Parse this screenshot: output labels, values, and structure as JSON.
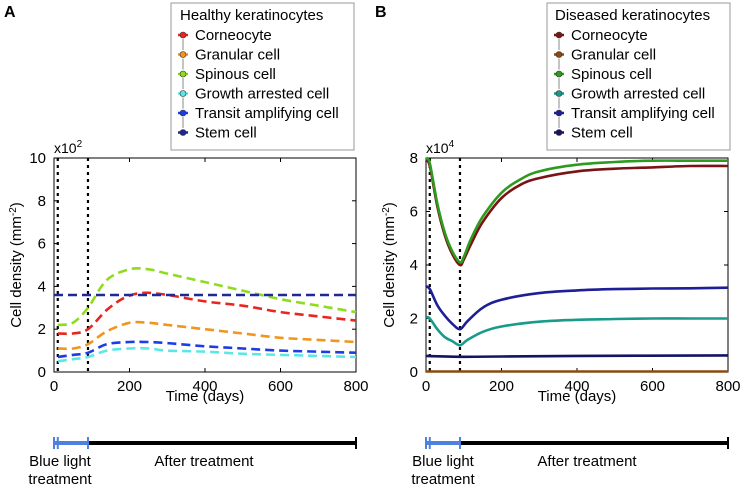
{
  "chart_data": [
    {
      "panel": "A",
      "type": "line",
      "legend_title": "Healthy keratinocytes",
      "exponent_base": "x10",
      "exponent_power": "2",
      "xlabel": "Time (days)",
      "ylabel_main": "Cell density (mm",
      "ylabel_sup": "-2",
      "ylabel_close": ")",
      "xlim": [
        0,
        800
      ],
      "ylim": [
        0,
        10
      ],
      "xticks": [
        0,
        200,
        400,
        600,
        800
      ],
      "yticks": [
        0,
        2,
        4,
        6,
        8,
        10
      ],
      "vlines": [
        10,
        90
      ],
      "line_style": "dashed",
      "series": [
        {
          "name": "Corneocyte",
          "color": "#e8261f",
          "x": [
            10,
            50,
            90,
            140,
            190,
            240,
            300,
            400,
            500,
            600,
            700,
            800
          ],
          "y": [
            1.8,
            1.8,
            2.0,
            2.9,
            3.5,
            3.7,
            3.6,
            3.3,
            3.1,
            2.8,
            2.6,
            2.4
          ]
        },
        {
          "name": "Granular cell",
          "color": "#f0961e",
          "x": [
            10,
            50,
            90,
            140,
            200,
            250,
            300,
            400,
            500,
            600,
            700,
            800
          ],
          "y": [
            1.1,
            1.1,
            1.3,
            1.9,
            2.3,
            2.3,
            2.2,
            2.0,
            1.8,
            1.6,
            1.5,
            1.4
          ]
        },
        {
          "name": "Spinous cell",
          "color": "#8fdc1e",
          "x": [
            10,
            50,
            90,
            140,
            200,
            250,
            300,
            400,
            500,
            600,
            700,
            800
          ],
          "y": [
            2.2,
            2.3,
            3.0,
            4.3,
            4.8,
            4.8,
            4.6,
            4.2,
            3.8,
            3.4,
            3.1,
            2.8
          ]
        },
        {
          "name": "Growth arrested cell",
          "color": "#5ee6e6",
          "x": [
            10,
            50,
            90,
            140,
            200,
            250,
            300,
            400,
            500,
            600,
            700,
            800
          ],
          "y": [
            0.5,
            0.6,
            0.7,
            1.0,
            1.1,
            1.1,
            1.0,
            0.95,
            0.85,
            0.8,
            0.75,
            0.7
          ]
        },
        {
          "name": "Transit amplifying cell",
          "color": "#1e3ce6",
          "x": [
            10,
            50,
            90,
            140,
            200,
            250,
            300,
            400,
            500,
            600,
            700,
            800
          ],
          "y": [
            0.7,
            0.8,
            0.9,
            1.3,
            1.4,
            1.4,
            1.35,
            1.2,
            1.1,
            1.0,
            0.95,
            0.9
          ]
        },
        {
          "name": "Stem cell",
          "color": "#1e2896",
          "x": [
            0,
            800
          ],
          "y": [
            3.6,
            3.6
          ]
        }
      ]
    },
    {
      "panel": "B",
      "type": "line",
      "legend_title": "Diseased keratinocytes",
      "exponent_base": "x10",
      "exponent_power": "4",
      "xlabel": "Time (days)",
      "ylabel_main": "Cell density (mm",
      "ylabel_sup": "-2",
      "ylabel_close": ")",
      "xlim": [
        0,
        800
      ],
      "ylim": [
        0,
        8
      ],
      "xticks": [
        0,
        200,
        400,
        600,
        800
      ],
      "yticks": [
        0,
        2,
        4,
        6,
        8
      ],
      "vlines": [
        10,
        90
      ],
      "line_style": "solid",
      "series": [
        {
          "name": "Corneocyte",
          "color": "#7a1414",
          "x": [
            0,
            10,
            30,
            50,
            70,
            90,
            100,
            120,
            150,
            200,
            250,
            300,
            400,
            500,
            600,
            700,
            800
          ],
          "y": [
            7.9,
            7.7,
            6.2,
            5.1,
            4.4,
            4.0,
            4.2,
            4.8,
            5.6,
            6.5,
            7.0,
            7.25,
            7.5,
            7.6,
            7.65,
            7.7,
            7.7
          ]
        },
        {
          "name": "Granular cell",
          "color": "#8a4a10",
          "x": [
            0,
            800
          ],
          "y": [
            0.02,
            0.02
          ]
        },
        {
          "name": "Spinous cell",
          "color": "#2e9a1e",
          "x": [
            0,
            10,
            30,
            50,
            70,
            90,
            100,
            120,
            150,
            200,
            250,
            300,
            400,
            500,
            600,
            700,
            800
          ],
          "y": [
            8.0,
            7.8,
            6.3,
            5.2,
            4.5,
            4.1,
            4.3,
            5.0,
            5.8,
            6.7,
            7.2,
            7.5,
            7.75,
            7.85,
            7.9,
            7.9,
            7.9
          ]
        },
        {
          "name": "Growth arrested cell",
          "color": "#1a9a8a",
          "x": [
            0,
            10,
            30,
            50,
            70,
            90,
            110,
            150,
            200,
            300,
            400,
            500,
            600,
            700,
            800
          ],
          "y": [
            2.05,
            2.0,
            1.6,
            1.3,
            1.15,
            1.0,
            1.2,
            1.5,
            1.7,
            1.88,
            1.95,
            1.98,
            2.0,
            2.0,
            2.0
          ]
        },
        {
          "name": "Transit amplifying cell",
          "color": "#1e1e96",
          "x": [
            0,
            10,
            30,
            50,
            70,
            90,
            110,
            150,
            200,
            300,
            400,
            500,
            600,
            700,
            800
          ],
          "y": [
            3.2,
            3.1,
            2.5,
            2.1,
            1.8,
            1.6,
            1.9,
            2.4,
            2.7,
            2.95,
            3.05,
            3.1,
            3.12,
            3.13,
            3.15
          ]
        },
        {
          "name": "Stem cell",
          "color": "#141464",
          "x": [
            0,
            100,
            200,
            400,
            800
          ],
          "y": [
            0.6,
            0.57,
            0.58,
            0.6,
            0.62
          ]
        }
      ]
    }
  ],
  "timeline": {
    "treatment_days": [
      0,
      90
    ],
    "end_day": 800,
    "treatment_label_line1": "Blue light",
    "treatment_label_line2": "treatment",
    "after_label": "After treatment",
    "treatment_color": "#4f80e0",
    "after_color": "#000000"
  }
}
